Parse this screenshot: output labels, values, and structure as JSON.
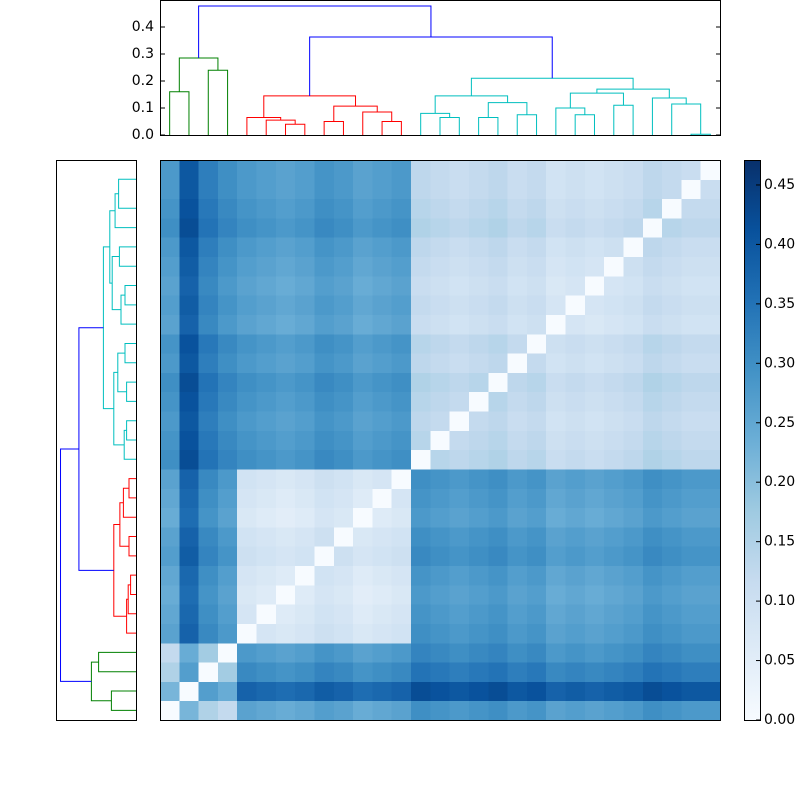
{
  "chart_data": {
    "type": "clustered-heatmap",
    "colormap": "Blues",
    "clim": [
      0,
      0.471
    ],
    "colorbar_ticks": [
      {
        "value": 0,
        "label": "0.00"
      },
      {
        "value": 0.05,
        "label": "0.05"
      },
      {
        "value": 0.1,
        "label": "0.10"
      },
      {
        "value": 0.15,
        "label": "0.15"
      },
      {
        "value": 0.2,
        "label": "0.20"
      },
      {
        "value": 0.25,
        "label": "0.25"
      },
      {
        "value": 0.3,
        "label": "0.30"
      },
      {
        "value": 0.35,
        "label": "0.35"
      },
      {
        "value": 0.4,
        "label": "0.40"
      },
      {
        "value": 0.45,
        "label": "0.45"
      }
    ],
    "dendrogram": {
      "ylim": [
        0,
        0.5
      ],
      "yticks": [
        {
          "value": 0,
          "label": "0.0"
        },
        {
          "value": 0.1,
          "label": "0.1"
        },
        {
          "value": 0.2,
          "label": "0.2"
        },
        {
          "value": 0.3,
          "label": "0.3"
        },
        {
          "value": 0.4,
          "label": "0.4"
        }
      ],
      "links": [
        {
          "left": 0,
          "right": 1,
          "left_height": 0,
          "right_height": 0,
          "height": 0.16,
          "color": "#008000"
        },
        {
          "left": 2,
          "right": 3,
          "left_height": 0,
          "right_height": 0,
          "height": 0.24,
          "color": "#008000"
        },
        {
          "left": 0.5,
          "right": 2.5,
          "left_height": 0.16,
          "right_height": 0.24,
          "height": 0.285,
          "color": "#008000"
        },
        {
          "left": 6,
          "right": 7,
          "left_height": 0,
          "right_height": 0,
          "height": 0.04,
          "color": "#ff0000"
        },
        {
          "left": 5,
          "right": 6.5,
          "left_height": 0,
          "right_height": 0.04,
          "height": 0.055,
          "color": "#ff0000"
        },
        {
          "left": 4,
          "right": 5.75,
          "left_height": 0,
          "right_height": 0.055,
          "height": 0.065,
          "color": "#ff0000"
        },
        {
          "left": 8,
          "right": 9,
          "left_height": 0,
          "right_height": 0,
          "height": 0.05,
          "color": "#ff0000"
        },
        {
          "left": 11,
          "right": 12,
          "left_height": 0,
          "right_height": 0,
          "height": 0.05,
          "color": "#ff0000"
        },
        {
          "left": 10,
          "right": 11.5,
          "left_height": 0,
          "right_height": 0.05,
          "height": 0.085,
          "color": "#ff0000"
        },
        {
          "left": 8.5,
          "right": 10.75,
          "left_height": 0.05,
          "right_height": 0.085,
          "height": 0.107,
          "color": "#ff0000"
        },
        {
          "left": 4.875,
          "right": 9.625,
          "left_height": 0.065,
          "right_height": 0.107,
          "height": 0.145,
          "color": "#ff0000"
        },
        {
          "left": 14,
          "right": 15,
          "left_height": 0,
          "right_height": 0,
          "height": 0.065,
          "color": "#00bfbf"
        },
        {
          "left": 13,
          "right": 14.5,
          "left_height": 0,
          "right_height": 0.065,
          "height": 0.08,
          "color": "#00bfbf"
        },
        {
          "left": 16,
          "right": 17,
          "left_height": 0,
          "right_height": 0,
          "height": 0.065,
          "color": "#00bfbf"
        },
        {
          "left": 18,
          "right": 19,
          "left_height": 0,
          "right_height": 0,
          "height": 0.075,
          "color": "#00bfbf"
        },
        {
          "left": 16.5,
          "right": 18.5,
          "left_height": 0.065,
          "right_height": 0.075,
          "height": 0.12,
          "color": "#00bfbf"
        },
        {
          "left": 13.75,
          "right": 17.5,
          "left_height": 0.08,
          "right_height": 0.12,
          "height": 0.145,
          "color": "#00bfbf"
        },
        {
          "left": 21,
          "right": 22,
          "left_height": 0,
          "right_height": 0,
          "height": 0.075,
          "color": "#00bfbf"
        },
        {
          "left": 20,
          "right": 21.5,
          "left_height": 0,
          "right_height": 0.075,
          "height": 0.1,
          "color": "#00bfbf"
        },
        {
          "left": 23,
          "right": 24,
          "left_height": 0,
          "right_height": 0,
          "height": 0.11,
          "color": "#00bfbf"
        },
        {
          "left": 20.75,
          "right": 23.5,
          "left_height": 0.1,
          "right_height": 0.11,
          "height": 0.155,
          "color": "#00bfbf"
        },
        {
          "left": 27,
          "right": 28,
          "left_height": 0,
          "right_height": 0,
          "height": 0.003,
          "color": "#00bfbf"
        },
        {
          "left": 26,
          "right": 27.5,
          "left_height": 0,
          "right_height": 0.003,
          "height": 0.115,
          "color": "#00bfbf"
        },
        {
          "left": 25,
          "right": 26.75,
          "left_height": 0,
          "right_height": 0.115,
          "height": 0.137,
          "color": "#00bfbf"
        },
        {
          "left": 22.125,
          "right": 25.875,
          "left_height": 0.155,
          "right_height": 0.137,
          "height": 0.17,
          "color": "#00bfbf"
        },
        {
          "left": 15.625,
          "right": 24,
          "left_height": 0.145,
          "right_height": 0.17,
          "height": 0.21,
          "color": "#00bfbf"
        },
        {
          "left": 7.25,
          "right": 19.8125,
          "left_height": 0.145,
          "right_height": 0.21,
          "height": 0.363,
          "color": "#0000ff"
        },
        {
          "left": 1.5,
          "right": 13.53125,
          "left_height": 0.285,
          "right_height": 0.363,
          "height": 0.478,
          "color": "#0000ff"
        }
      ]
    },
    "matrix": [
      [
        0,
        0.22,
        0.15,
        0.12,
        0.26,
        0.25,
        0.24,
        0.25,
        0.27,
        0.26,
        0.24,
        0.25,
        0.26,
        0.3,
        0.29,
        0.28,
        0.29,
        0.3,
        0.28,
        0.29,
        0.26,
        0.27,
        0.26,
        0.27,
        0.28,
        0.3,
        0.29,
        0.28,
        0.28
      ],
      [
        0.22,
        0,
        0.27,
        0.24,
        0.38,
        0.37,
        0.36,
        0.37,
        0.39,
        0.38,
        0.36,
        0.37,
        0.38,
        0.42,
        0.41,
        0.4,
        0.41,
        0.42,
        0.4,
        0.41,
        0.38,
        0.39,
        0.38,
        0.39,
        0.4,
        0.42,
        0.41,
        0.4,
        0.4
      ],
      [
        0.15,
        0.27,
        0,
        0.17,
        0.31,
        0.3,
        0.29,
        0.3,
        0.32,
        0.31,
        0.29,
        0.3,
        0.31,
        0.35,
        0.34,
        0.33,
        0.34,
        0.35,
        0.33,
        0.34,
        0.31,
        0.32,
        0.31,
        0.32,
        0.33,
        0.35,
        0.34,
        0.33,
        0.33
      ],
      [
        0.12,
        0.24,
        0.17,
        0,
        0.28,
        0.27,
        0.26,
        0.27,
        0.29,
        0.28,
        0.26,
        0.27,
        0.28,
        0.32,
        0.31,
        0.3,
        0.31,
        0.32,
        0.3,
        0.31,
        0.28,
        0.29,
        0.28,
        0.29,
        0.3,
        0.32,
        0.31,
        0.3,
        0.3
      ],
      [
        0.26,
        0.38,
        0.31,
        0.28,
        0,
        0.08,
        0.07,
        0.08,
        0.1,
        0.09,
        0.07,
        0.08,
        0.09,
        0.3,
        0.29,
        0.28,
        0.29,
        0.3,
        0.28,
        0.29,
        0.26,
        0.27,
        0.26,
        0.27,
        0.28,
        0.3,
        0.29,
        0.28,
        0.28
      ],
      [
        0.25,
        0.37,
        0.3,
        0.27,
        0.08,
        0,
        0.06,
        0.07,
        0.09,
        0.08,
        0.06,
        0.07,
        0.08,
        0.29,
        0.28,
        0.27,
        0.28,
        0.29,
        0.27,
        0.28,
        0.25,
        0.26,
        0.25,
        0.26,
        0.27,
        0.29,
        0.28,
        0.27,
        0.27
      ],
      [
        0.24,
        0.36,
        0.29,
        0.26,
        0.07,
        0.06,
        0,
        0.06,
        0.08,
        0.07,
        0.05,
        0.06,
        0.07,
        0.28,
        0.27,
        0.26,
        0.27,
        0.28,
        0.26,
        0.27,
        0.24,
        0.25,
        0.24,
        0.25,
        0.26,
        0.28,
        0.27,
        0.26,
        0.26
      ],
      [
        0.25,
        0.37,
        0.3,
        0.27,
        0.08,
        0.07,
        0.06,
        0,
        0.09,
        0.08,
        0.06,
        0.07,
        0.08,
        0.29,
        0.28,
        0.27,
        0.28,
        0.29,
        0.27,
        0.28,
        0.25,
        0.26,
        0.25,
        0.26,
        0.27,
        0.29,
        0.28,
        0.27,
        0.27
      ],
      [
        0.27,
        0.39,
        0.32,
        0.29,
        0.1,
        0.09,
        0.08,
        0.09,
        0,
        0.1,
        0.08,
        0.09,
        0.1,
        0.31,
        0.3,
        0.29,
        0.3,
        0.31,
        0.29,
        0.3,
        0.27,
        0.28,
        0.27,
        0.28,
        0.29,
        0.31,
        0.3,
        0.29,
        0.29
      ],
      [
        0.26,
        0.38,
        0.31,
        0.28,
        0.09,
        0.08,
        0.07,
        0.08,
        0.1,
        0,
        0.07,
        0.08,
        0.09,
        0.3,
        0.29,
        0.28,
        0.29,
        0.3,
        0.28,
        0.29,
        0.26,
        0.27,
        0.26,
        0.27,
        0.28,
        0.3,
        0.29,
        0.28,
        0.28
      ],
      [
        0.24,
        0.36,
        0.29,
        0.26,
        0.07,
        0.06,
        0.05,
        0.06,
        0.08,
        0.07,
        0,
        0.06,
        0.07,
        0.28,
        0.27,
        0.26,
        0.27,
        0.28,
        0.26,
        0.27,
        0.24,
        0.25,
        0.24,
        0.25,
        0.26,
        0.28,
        0.27,
        0.26,
        0.26
      ],
      [
        0.25,
        0.37,
        0.3,
        0.27,
        0.08,
        0.07,
        0.06,
        0.07,
        0.09,
        0.08,
        0.06,
        0,
        0.08,
        0.29,
        0.28,
        0.27,
        0.28,
        0.29,
        0.27,
        0.28,
        0.25,
        0.26,
        0.25,
        0.26,
        0.27,
        0.29,
        0.28,
        0.27,
        0.27
      ],
      [
        0.26,
        0.38,
        0.31,
        0.28,
        0.09,
        0.08,
        0.07,
        0.08,
        0.1,
        0.09,
        0.07,
        0.08,
        0,
        0.3,
        0.29,
        0.28,
        0.29,
        0.3,
        0.28,
        0.29,
        0.26,
        0.27,
        0.26,
        0.27,
        0.28,
        0.3,
        0.29,
        0.28,
        0.28
      ],
      [
        0.3,
        0.42,
        0.35,
        0.32,
        0.3,
        0.29,
        0.28,
        0.29,
        0.31,
        0.3,
        0.28,
        0.29,
        0.3,
        0,
        0.14,
        0.13,
        0.14,
        0.15,
        0.13,
        0.14,
        0.11,
        0.12,
        0.11,
        0.12,
        0.13,
        0.15,
        0.14,
        0.13,
        0.13
      ],
      [
        0.29,
        0.41,
        0.34,
        0.31,
        0.29,
        0.28,
        0.27,
        0.28,
        0.3,
        0.29,
        0.27,
        0.28,
        0.29,
        0.14,
        0,
        0.12,
        0.13,
        0.14,
        0.12,
        0.13,
        0.1,
        0.11,
        0.1,
        0.11,
        0.12,
        0.14,
        0.13,
        0.12,
        0.12
      ],
      [
        0.28,
        0.4,
        0.33,
        0.3,
        0.28,
        0.27,
        0.26,
        0.27,
        0.29,
        0.28,
        0.26,
        0.27,
        0.28,
        0.13,
        0.12,
        0,
        0.12,
        0.13,
        0.11,
        0.12,
        0.09,
        0.1,
        0.09,
        0.1,
        0.11,
        0.13,
        0.12,
        0.11,
        0.11
      ],
      [
        0.29,
        0.41,
        0.34,
        0.31,
        0.29,
        0.28,
        0.27,
        0.28,
        0.3,
        0.29,
        0.27,
        0.28,
        0.29,
        0.14,
        0.13,
        0.12,
        0,
        0.14,
        0.12,
        0.13,
        0.1,
        0.11,
        0.1,
        0.11,
        0.12,
        0.14,
        0.13,
        0.12,
        0.12
      ],
      [
        0.3,
        0.42,
        0.35,
        0.32,
        0.3,
        0.29,
        0.28,
        0.29,
        0.31,
        0.3,
        0.28,
        0.29,
        0.3,
        0.15,
        0.14,
        0.13,
        0.14,
        0,
        0.13,
        0.14,
        0.11,
        0.12,
        0.11,
        0.12,
        0.13,
        0.15,
        0.14,
        0.13,
        0.13
      ],
      [
        0.28,
        0.4,
        0.33,
        0.3,
        0.28,
        0.27,
        0.26,
        0.27,
        0.29,
        0.28,
        0.26,
        0.27,
        0.28,
        0.13,
        0.12,
        0.11,
        0.12,
        0.13,
        0,
        0.12,
        0.09,
        0.1,
        0.09,
        0.1,
        0.11,
        0.13,
        0.12,
        0.11,
        0.11
      ],
      [
        0.29,
        0.41,
        0.34,
        0.31,
        0.29,
        0.28,
        0.27,
        0.28,
        0.3,
        0.29,
        0.27,
        0.28,
        0.29,
        0.14,
        0.13,
        0.12,
        0.13,
        0.14,
        0.12,
        0,
        0.1,
        0.11,
        0.1,
        0.11,
        0.12,
        0.14,
        0.13,
        0.12,
        0.12
      ],
      [
        0.26,
        0.38,
        0.31,
        0.28,
        0.26,
        0.25,
        0.24,
        0.25,
        0.27,
        0.26,
        0.24,
        0.25,
        0.26,
        0.11,
        0.1,
        0.09,
        0.1,
        0.11,
        0.09,
        0.1,
        0,
        0.08,
        0.07,
        0.08,
        0.09,
        0.11,
        0.1,
        0.09,
        0.09
      ],
      [
        0.27,
        0.39,
        0.32,
        0.29,
        0.27,
        0.26,
        0.25,
        0.26,
        0.28,
        0.27,
        0.25,
        0.26,
        0.27,
        0.12,
        0.11,
        0.1,
        0.11,
        0.12,
        0.1,
        0.11,
        0.08,
        0,
        0.08,
        0.09,
        0.1,
        0.12,
        0.11,
        0.1,
        0.1
      ],
      [
        0.26,
        0.38,
        0.31,
        0.28,
        0.26,
        0.25,
        0.24,
        0.25,
        0.27,
        0.26,
        0.24,
        0.25,
        0.26,
        0.11,
        0.1,
        0.09,
        0.1,
        0.11,
        0.09,
        0.1,
        0.07,
        0.08,
        0,
        0.08,
        0.09,
        0.11,
        0.1,
        0.09,
        0.09
      ],
      [
        0.27,
        0.39,
        0.32,
        0.29,
        0.27,
        0.26,
        0.25,
        0.26,
        0.28,
        0.27,
        0.25,
        0.26,
        0.27,
        0.12,
        0.11,
        0.1,
        0.11,
        0.12,
        0.1,
        0.11,
        0.08,
        0.09,
        0.08,
        0,
        0.1,
        0.12,
        0.11,
        0.1,
        0.1
      ],
      [
        0.28,
        0.4,
        0.33,
        0.3,
        0.28,
        0.27,
        0.26,
        0.27,
        0.29,
        0.28,
        0.26,
        0.27,
        0.28,
        0.13,
        0.12,
        0.11,
        0.12,
        0.13,
        0.11,
        0.12,
        0.09,
        0.1,
        0.09,
        0.1,
        0,
        0.13,
        0.12,
        0.11,
        0.11
      ],
      [
        0.3,
        0.42,
        0.35,
        0.32,
        0.3,
        0.29,
        0.28,
        0.29,
        0.31,
        0.3,
        0.28,
        0.29,
        0.3,
        0.15,
        0.14,
        0.13,
        0.14,
        0.15,
        0.13,
        0.14,
        0.11,
        0.12,
        0.11,
        0.12,
        0.13,
        0,
        0.14,
        0.13,
        0.13
      ],
      [
        0.29,
        0.41,
        0.34,
        0.31,
        0.29,
        0.28,
        0.27,
        0.28,
        0.3,
        0.29,
        0.27,
        0.28,
        0.29,
        0.14,
        0.13,
        0.12,
        0.13,
        0.14,
        0.12,
        0.13,
        0.1,
        0.11,
        0.1,
        0.11,
        0.12,
        0.14,
        0,
        0.12,
        0.12
      ],
      [
        0.28,
        0.4,
        0.33,
        0.3,
        0.28,
        0.27,
        0.26,
        0.27,
        0.29,
        0.28,
        0.26,
        0.27,
        0.28,
        0.13,
        0.12,
        0.11,
        0.12,
        0.13,
        0.11,
        0.12,
        0.09,
        0.1,
        0.09,
        0.1,
        0.11,
        0.13,
        0.12,
        0,
        0.11
      ],
      [
        0.28,
        0.4,
        0.33,
        0.3,
        0.28,
        0.27,
        0.26,
        0.27,
        0.29,
        0.28,
        0.26,
        0.27,
        0.28,
        0.13,
        0.12,
        0.11,
        0.12,
        0.13,
        0.11,
        0.12,
        0.09,
        0.1,
        0.09,
        0.1,
        0.11,
        0.13,
        0.12,
        0.11,
        0
      ]
    ]
  }
}
